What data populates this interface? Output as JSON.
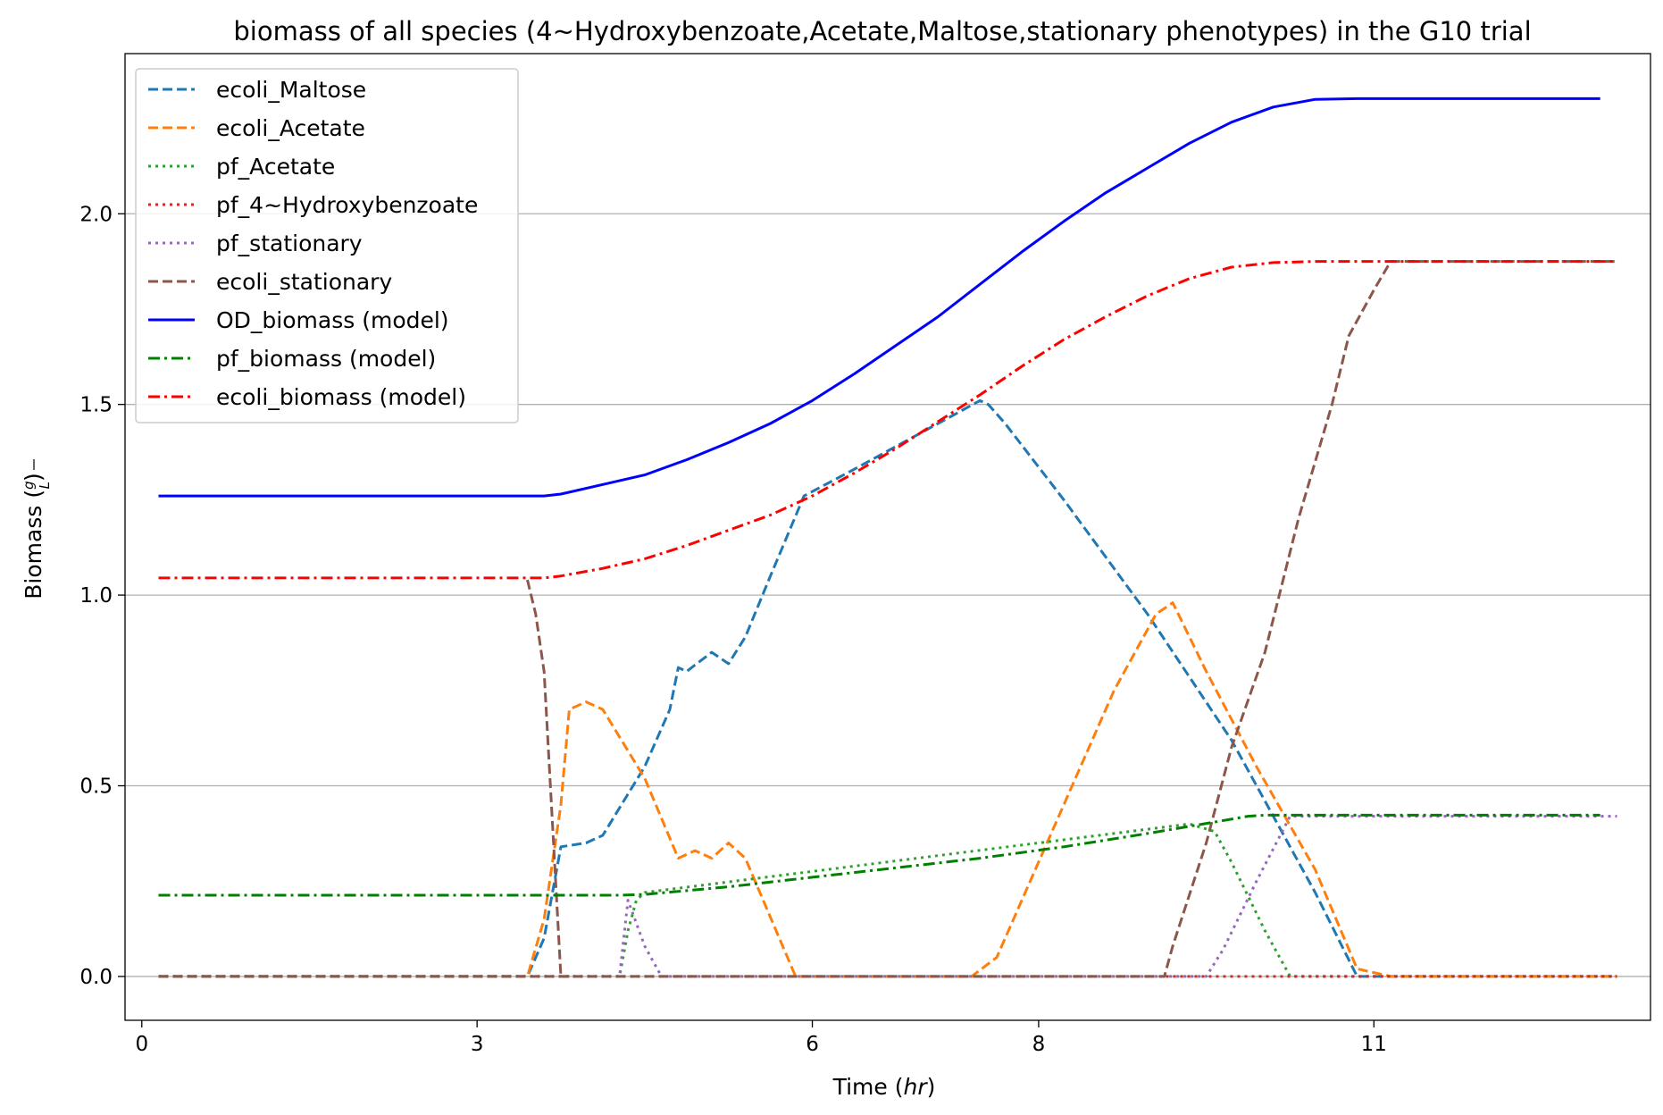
{
  "chart_data": {
    "type": "line",
    "title": "biomass of all species (4~Hydroxybenzoate,Acetate,Maltose,stationary phenotypes) in the G10 trial",
    "xlabel_prefix": "Time (",
    "xlabel_unit": "hr",
    "xlabel_suffix": ")",
    "ylabel_prefix": "Biomass (",
    "ylabel_num": "g",
    "ylabel_den": "L",
    "ylabel_suffix": ")",
    "xlim": [
      -0.02,
      1.8
    ],
    "ylim": [
      -0.115,
      2.42
    ],
    "x_ticks": [
      {
        "pos": 0.0,
        "label": "0"
      },
      {
        "pos": 0.4,
        "label": "3"
      },
      {
        "pos": 0.8,
        "label": "6"
      },
      {
        "pos": 1.07,
        "label": "8"
      },
      {
        "pos": 1.47,
        "label": "11"
      }
    ],
    "y_ticks": [
      {
        "pos": 0.0,
        "label": "0.0"
      },
      {
        "pos": 0.5,
        "label": "0.5"
      },
      {
        "pos": 1.0,
        "label": "1.0"
      },
      {
        "pos": 1.5,
        "label": "1.5"
      },
      {
        "pos": 2.0,
        "label": "2.0"
      }
    ],
    "grid": "y",
    "legend_position": "top-left",
    "series": [
      {
        "name": "ecoli_Maltose",
        "color": "#1f77b4",
        "dash": "dashed",
        "points": [
          [
            0.02,
            0
          ],
          [
            0.46,
            0
          ],
          [
            0.48,
            0.1
          ],
          [
            0.5,
            0.34
          ],
          [
            0.53,
            0.35
          ],
          [
            0.55,
            0.37
          ],
          [
            0.6,
            0.55
          ],
          [
            0.63,
            0.7
          ],
          [
            0.64,
            0.81
          ],
          [
            0.65,
            0.8
          ],
          [
            0.68,
            0.85
          ],
          [
            0.7,
            0.82
          ],
          [
            0.72,
            0.89
          ],
          [
            0.75,
            1.05
          ],
          [
            0.79,
            1.26
          ],
          [
            0.85,
            1.33
          ],
          [
            0.9,
            1.39
          ],
          [
            0.95,
            1.45
          ],
          [
            1.0,
            1.51
          ],
          [
            1.01,
            1.5
          ],
          [
            1.03,
            1.45
          ],
          [
            1.1,
            1.25
          ],
          [
            1.2,
            0.95
          ],
          [
            1.3,
            0.62
          ],
          [
            1.35,
            0.42
          ],
          [
            1.4,
            0.22
          ],
          [
            1.45,
            0
          ],
          [
            1.76,
            0
          ]
        ]
      },
      {
        "name": "ecoli_Acetate",
        "color": "#ff7f0e",
        "dash": "dashed",
        "points": [
          [
            0.02,
            0
          ],
          [
            0.46,
            0
          ],
          [
            0.48,
            0.15
          ],
          [
            0.5,
            0.45
          ],
          [
            0.51,
            0.7
          ],
          [
            0.53,
            0.72
          ],
          [
            0.55,
            0.7
          ],
          [
            0.6,
            0.52
          ],
          [
            0.64,
            0.31
          ],
          [
            0.66,
            0.33
          ],
          [
            0.68,
            0.31
          ],
          [
            0.7,
            0.35
          ],
          [
            0.72,
            0.31
          ],
          [
            0.78,
            0.0
          ],
          [
            0.99,
            0
          ],
          [
            1.02,
            0.05
          ],
          [
            1.08,
            0.35
          ],
          [
            1.16,
            0.75
          ],
          [
            1.21,
            0.95
          ],
          [
            1.23,
            0.98
          ],
          [
            1.27,
            0.8
          ],
          [
            1.33,
            0.55
          ],
          [
            1.4,
            0.28
          ],
          [
            1.45,
            0.02
          ],
          [
            1.49,
            0
          ],
          [
            1.76,
            0
          ]
        ]
      },
      {
        "name": "pf_Acetate",
        "color": "#2ca02c",
        "dash": "dotted",
        "points": [
          [
            0.02,
            0
          ],
          [
            0.57,
            0
          ],
          [
            0.58,
            0.12
          ],
          [
            0.59,
            0.2
          ],
          [
            0.6,
            0.22
          ],
          [
            1.25,
            0.4
          ],
          [
            1.28,
            0.38
          ],
          [
            1.3,
            0.3
          ],
          [
            1.34,
            0.12
          ],
          [
            1.37,
            0
          ],
          [
            1.76,
            0
          ]
        ]
      },
      {
        "name": "pf_4~Hydroxybenzoate",
        "color": "#d62728",
        "dash": "dotted",
        "points": [
          [
            0.02,
            0
          ],
          [
            1.76,
            0
          ]
        ]
      },
      {
        "name": "pf_stationary",
        "color": "#9467bd",
        "dash": "dotted",
        "points": [
          [
            0.02,
            0
          ],
          [
            0.57,
            0
          ],
          [
            0.58,
            0.2
          ],
          [
            0.6,
            0.08
          ],
          [
            0.62,
            0
          ],
          [
            1.27,
            0
          ],
          [
            1.29,
            0.07
          ],
          [
            1.33,
            0.25
          ],
          [
            1.37,
            0.42
          ],
          [
            1.39,
            0.42
          ],
          [
            1.76,
            0.42
          ]
        ]
      },
      {
        "name": "ecoli_stationary",
        "color": "#8c564b",
        "dash": "dashed",
        "points": [
          [
            0.02,
            0
          ],
          [
            1.22,
            0
          ],
          [
            1.23,
            0.08
          ],
          [
            1.27,
            0.35
          ],
          [
            1.3,
            0.6
          ],
          [
            1.34,
            0.85
          ],
          [
            1.38,
            1.2
          ],
          [
            1.42,
            1.5
          ],
          [
            1.44,
            1.68
          ],
          [
            1.47,
            1.8
          ],
          [
            1.49,
            1.875
          ],
          [
            1.76,
            1.875
          ]
        ]
      },
      {
        "name": "ecoli_stationary_lead",
        "color": "#8c564b",
        "dash": "dashed",
        "legend": false,
        "points": [
          [
            0.46,
            1.04
          ],
          [
            0.47,
            0.95
          ],
          [
            0.48,
            0.8
          ],
          [
            0.49,
            0.4
          ],
          [
            0.5,
            0
          ],
          [
            0.51,
            0
          ]
        ]
      },
      {
        "name": "OD_biomass (model)",
        "color": "#0000ff",
        "dash": "solid",
        "points": [
          [
            0.02,
            1.26
          ],
          [
            0.48,
            1.26
          ],
          [
            0.5,
            1.265
          ],
          [
            0.55,
            1.29
          ],
          [
            0.6,
            1.315
          ],
          [
            0.65,
            1.355
          ],
          [
            0.7,
            1.4
          ],
          [
            0.75,
            1.45
          ],
          [
            0.8,
            1.51
          ],
          [
            0.85,
            1.58
          ],
          [
            0.9,
            1.655
          ],
          [
            0.95,
            1.73
          ],
          [
            1.0,
            1.815
          ],
          [
            1.05,
            1.9
          ],
          [
            1.1,
            1.98
          ],
          [
            1.15,
            2.055
          ],
          [
            1.2,
            2.12
          ],
          [
            1.25,
            2.185
          ],
          [
            1.3,
            2.24
          ],
          [
            1.35,
            2.28
          ],
          [
            1.4,
            2.3
          ],
          [
            1.45,
            2.302
          ],
          [
            1.74,
            2.302
          ]
        ]
      },
      {
        "name": "pf_biomass (model)",
        "color": "#008000",
        "dash": "dashdot",
        "points": [
          [
            0.02,
            0.213
          ],
          [
            0.57,
            0.213
          ],
          [
            0.6,
            0.215
          ],
          [
            0.7,
            0.235
          ],
          [
            0.8,
            0.26
          ],
          [
            0.9,
            0.285
          ],
          [
            1.0,
            0.31
          ],
          [
            1.1,
            0.34
          ],
          [
            1.2,
            0.375
          ],
          [
            1.28,
            0.405
          ],
          [
            1.32,
            0.42
          ],
          [
            1.34,
            0.423
          ],
          [
            1.74,
            0.423
          ]
        ]
      },
      {
        "name": "ecoli_biomass (model)",
        "color": "#ff0000",
        "dash": "dashdot",
        "points": [
          [
            0.02,
            1.045
          ],
          [
            0.48,
            1.045
          ],
          [
            0.5,
            1.05
          ],
          [
            0.55,
            1.07
          ],
          [
            0.6,
            1.095
          ],
          [
            0.65,
            1.13
          ],
          [
            0.7,
            1.17
          ],
          [
            0.75,
            1.21
          ],
          [
            0.8,
            1.26
          ],
          [
            0.85,
            1.32
          ],
          [
            0.9,
            1.385
          ],
          [
            0.95,
            1.455
          ],
          [
            1.0,
            1.525
          ],
          [
            1.05,
            1.6
          ],
          [
            1.1,
            1.67
          ],
          [
            1.15,
            1.73
          ],
          [
            1.2,
            1.785
          ],
          [
            1.25,
            1.83
          ],
          [
            1.3,
            1.86
          ],
          [
            1.35,
            1.872
          ],
          [
            1.4,
            1.875
          ],
          [
            1.76,
            1.875
          ]
        ]
      }
    ]
  }
}
